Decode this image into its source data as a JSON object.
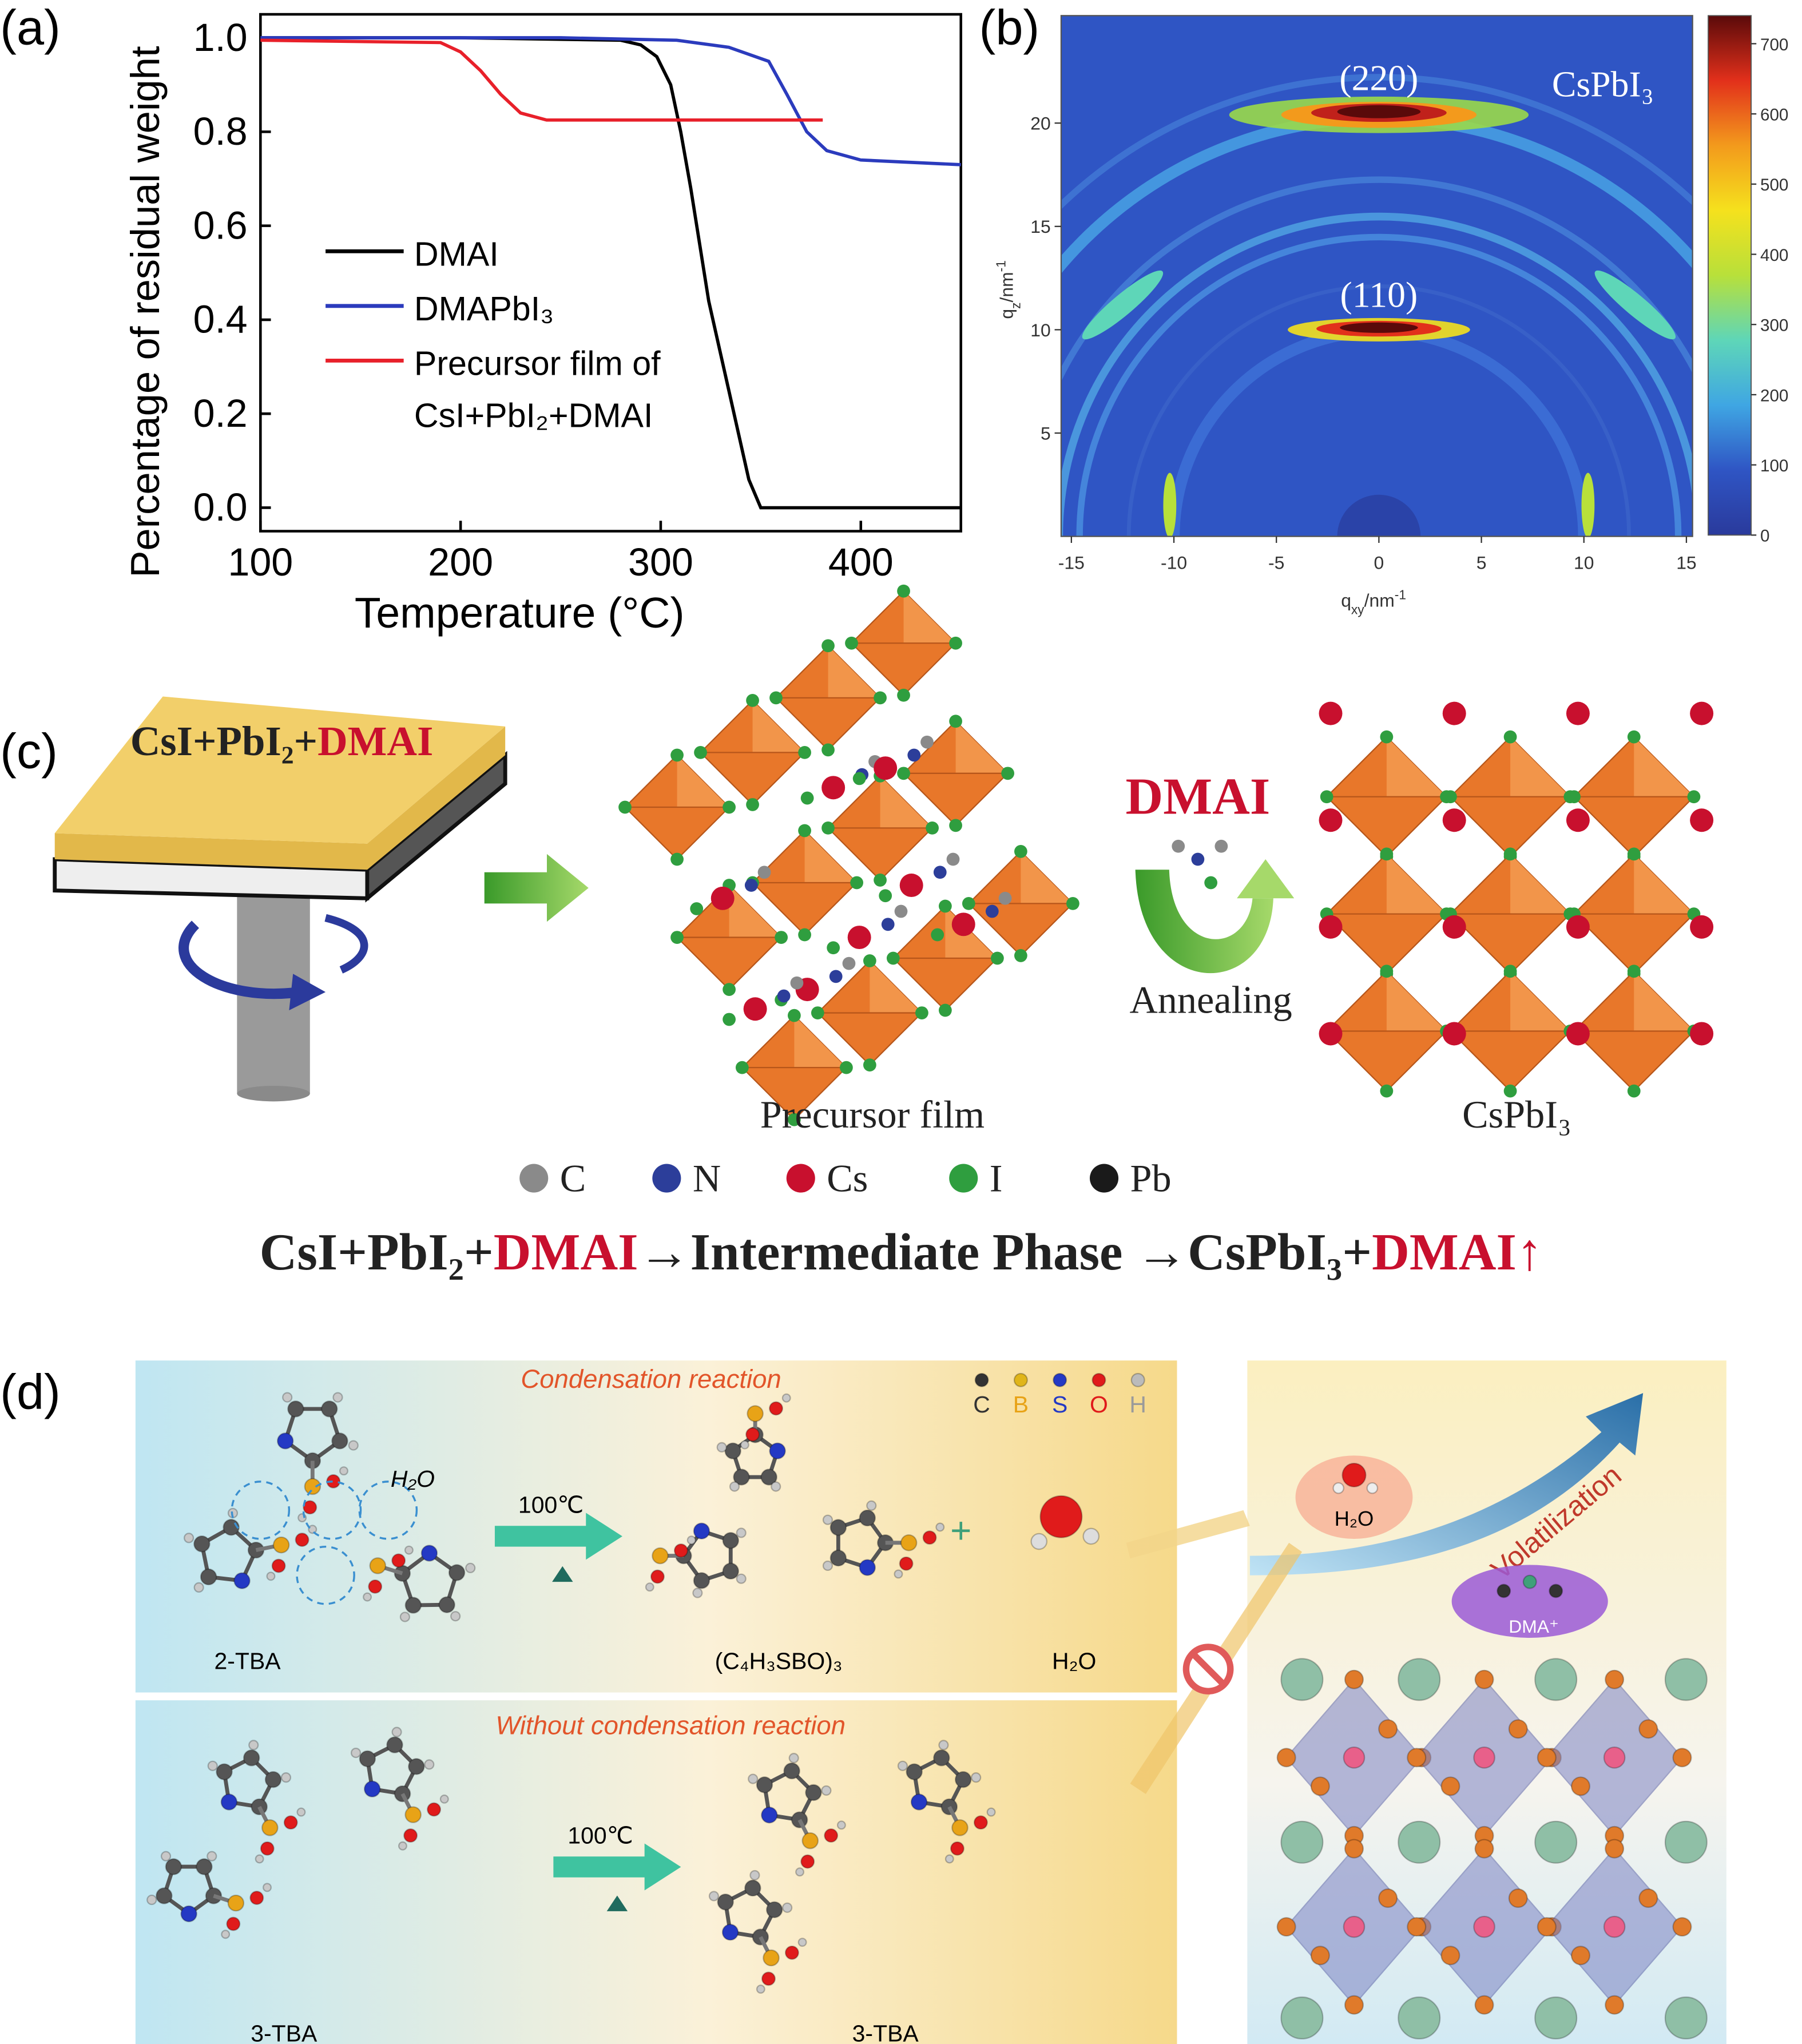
{
  "chart_data": [
    {
      "type": "line",
      "panel_label": "(a)",
      "x_label": "Temperature (°C)",
      "y_label": "Percentage of residual weight",
      "xlim": [
        100,
        450
      ],
      "xticks": [
        100,
        200,
        300,
        400
      ],
      "ylim": [
        -0.05,
        1.05
      ],
      "yticks": [
        {
          "value": 0,
          "label": "0.0"
        },
        0.2,
        0.4,
        0.6,
        0.8,
        {
          "value": 1,
          "label": "1.0"
        }
      ],
      "series": [
        {
          "name": "DMAI",
          "color": "#000000",
          "x": [
            100,
            200,
            280,
            290,
            298,
            305,
            310,
            315,
            324,
            334,
            344,
            350,
            400,
            450
          ],
          "values": [
            1,
            1,
            0.995,
            0.985,
            0.96,
            0.9,
            0.8,
            0.68,
            0.44,
            0.25,
            0.06,
            0,
            0,
            0
          ]
        },
        {
          "name": "DMAPbI₃",
          "color": "#2b3bbd",
          "x": [
            100,
            250,
            308,
            334,
            354,
            363,
            373,
            383,
            400,
            450
          ],
          "values": [
            1,
            1,
            0.995,
            0.98,
            0.95,
            0.88,
            0.8,
            0.76,
            0.74,
            0.73
          ]
        },
        {
          "name": "Precursor film of CsI+PbI₂+DMAI",
          "color": "#e8202a",
          "x": [
            100,
            190,
            200,
            210,
            220,
            230,
            243,
            381
          ],
          "values": [
            0.995,
            0.99,
            0.97,
            0.93,
            0.88,
            0.84,
            0.825,
            0.825
          ]
        }
      ]
    },
    {
      "type": "heatmap",
      "panel_label": "(b)",
      "x_label": [
        "q",
        "xy",
        "/nm",
        "-1"
      ],
      "y_label": [
        "q",
        "z",
        "/nm",
        "-1"
      ],
      "xlim": [
        -15.5,
        15.3
      ],
      "xticks": [
        -15,
        -10,
        -5,
        0,
        5,
        10,
        15
      ],
      "ylim": [
        0,
        25.2
      ],
      "yticks": [
        5,
        10,
        15,
        20
      ],
      "clim": [
        0,
        740
      ],
      "cticks": [
        0,
        100,
        200,
        300,
        400,
        500,
        600,
        700
      ],
      "colormap": [
        "#2a3a9c",
        "#2f55c4",
        "#3fa6e3",
        "#5ed6b8",
        "#b8e03a",
        "#f5e11d",
        "#f39a1c",
        "#e2301b",
        "#5a0a0a"
      ],
      "annotations": [
        "(220)",
        "(110)",
        "CsPbI₃"
      ]
    }
  ],
  "diagram_c": {
    "panel_label": "(c)",
    "film_label": [
      "CsI+PbI₂+",
      "DMAI"
    ],
    "released": "DMAI",
    "process": "Annealing",
    "precursor": "Precursor film",
    "product": "CsPbI₃",
    "atoms": [
      {
        "label": "C",
        "color": "#8a8a8a"
      },
      {
        "label": "N",
        "color": "#2c3e9a"
      },
      {
        "label": "Cs",
        "color": "#c8102e"
      },
      {
        "label": "I",
        "color": "#2f9e3f"
      },
      {
        "label": "Pb",
        "color": "#1a1a1a"
      }
    ],
    "equation": [
      "CsI+PbI₂+",
      "DMAI",
      "→Intermediate Phase →CsPbI₃+",
      "DMAI↑"
    ]
  },
  "diagram_d": {
    "panel_label": "(d)",
    "top": {
      "title": "Condensation reaction",
      "water_label": "H₂O",
      "temperature": "100℃",
      "reactant": "2-TBA",
      "product": "(C₄H₃SBO)₃",
      "plus": "+",
      "byproduct": "H₂O",
      "elements": [
        {
          "label": "C",
          "color": "#333333"
        },
        {
          "label": "B",
          "color": "#e8a317"
        },
        {
          "label": "S",
          "color": "#2439c4"
        },
        {
          "label": "O",
          "color": "#e01b1b"
        },
        {
          "label": "H",
          "color": "#9a9a9a"
        }
      ]
    },
    "bottom": {
      "title": "Without condensation reaction",
      "temperature": "100℃",
      "reactant": "3-TBA",
      "product": "3-TBA"
    },
    "right": {
      "water": "H₂O",
      "process": "Volatilization",
      "cation": "DMA⁺"
    }
  }
}
